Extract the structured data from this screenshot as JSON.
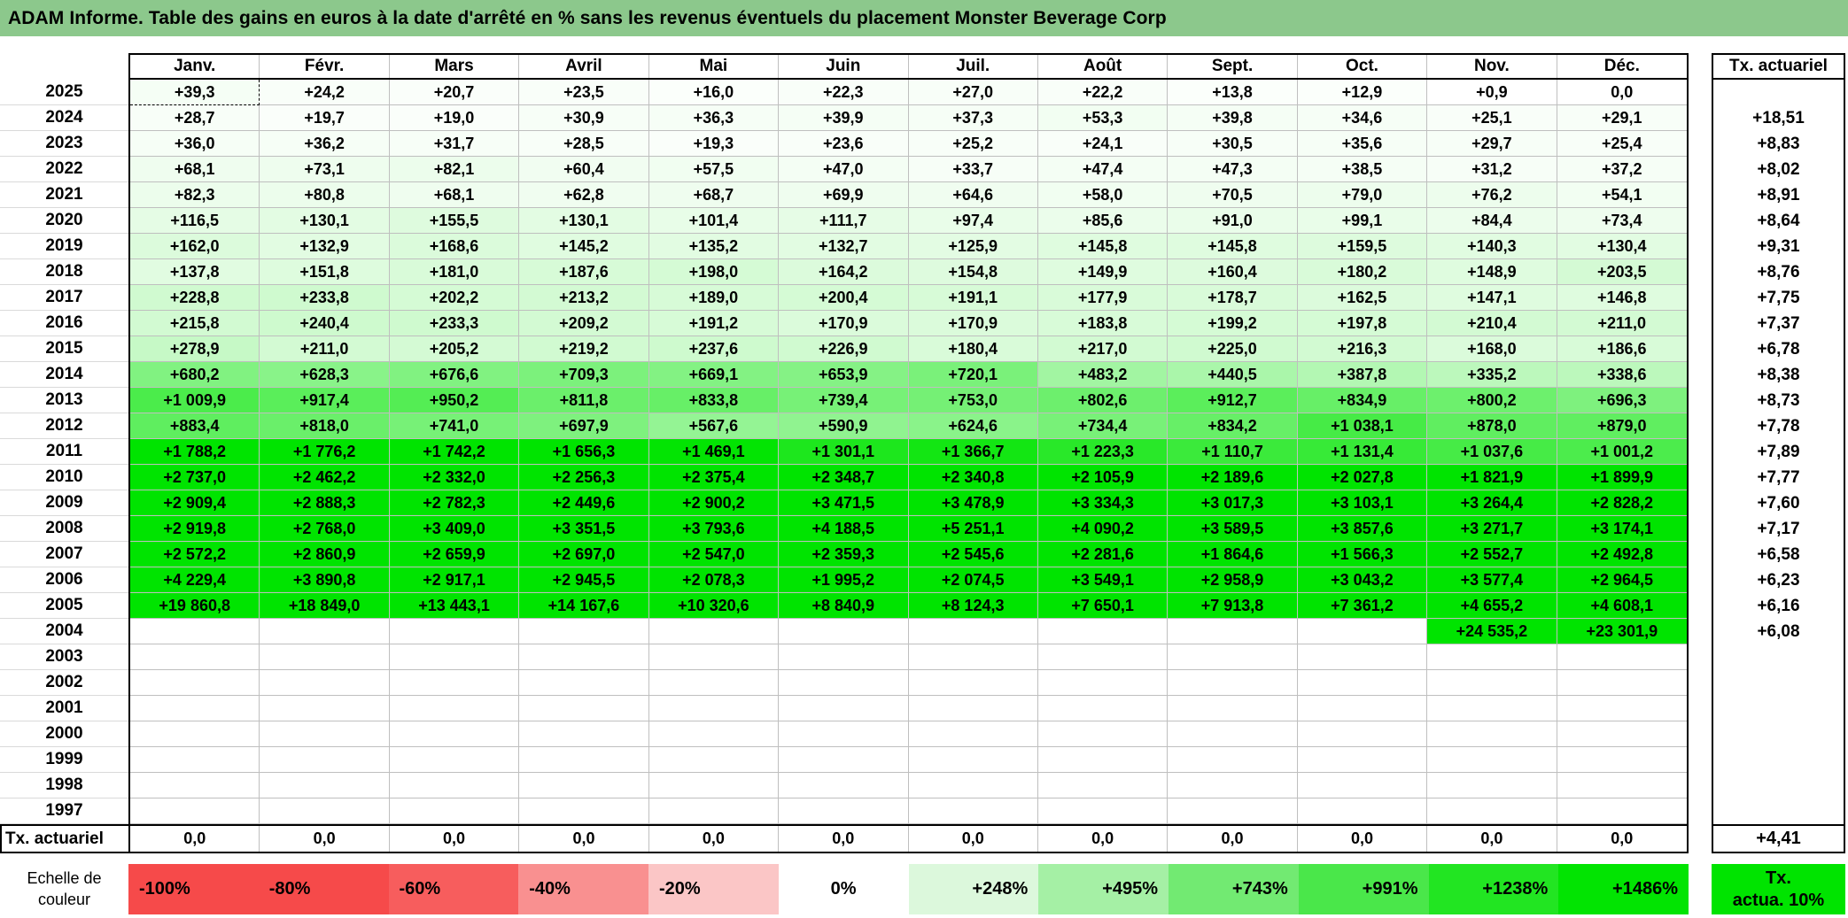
{
  "title": "ADAM Informe. Table des gains en euros à la date d'arrêté en % sans les revenus éventuels du placement Monster Beverage Corp",
  "months": [
    "Janv.",
    "Févr.",
    "Mars",
    "Avril",
    "Mai",
    "Juin",
    "Juil.",
    "Août",
    "Sept.",
    "Oct.",
    "Nov.",
    "Déc."
  ],
  "right_column": {
    "header": "Tx. actuariel"
  },
  "rows": [
    {
      "year": "2025",
      "cells": [
        "+39,3",
        "+24,2",
        "+20,7",
        "+23,5",
        "+16,0",
        "+22,3",
        "+27,0",
        "+22,2",
        "+13,8",
        "+12,9",
        "+0,9",
        "0,0"
      ],
      "tx": ""
    },
    {
      "year": "2024",
      "cells": [
        "+28,7",
        "+19,7",
        "+19,0",
        "+30,9",
        "+36,3",
        "+39,9",
        "+37,3",
        "+53,3",
        "+39,8",
        "+34,6",
        "+25,1",
        "+29,1"
      ],
      "tx": "+18,51"
    },
    {
      "year": "2023",
      "cells": [
        "+36,0",
        "+36,2",
        "+31,7",
        "+28,5",
        "+19,3",
        "+23,6",
        "+25,2",
        "+24,1",
        "+30,5",
        "+35,6",
        "+29,7",
        "+25,4"
      ],
      "tx": "+8,83"
    },
    {
      "year": "2022",
      "cells": [
        "+68,1",
        "+73,1",
        "+82,1",
        "+60,4",
        "+57,5",
        "+47,0",
        "+33,7",
        "+47,4",
        "+47,3",
        "+38,5",
        "+31,2",
        "+37,2"
      ],
      "tx": "+8,02"
    },
    {
      "year": "2021",
      "cells": [
        "+82,3",
        "+80,8",
        "+68,1",
        "+62,8",
        "+68,7",
        "+69,9",
        "+64,6",
        "+58,0",
        "+70,5",
        "+79,0",
        "+76,2",
        "+54,1"
      ],
      "tx": "+8,91"
    },
    {
      "year": "2020",
      "cells": [
        "+116,5",
        "+130,1",
        "+155,5",
        "+130,1",
        "+101,4",
        "+111,7",
        "+97,4",
        "+85,6",
        "+91,0",
        "+99,1",
        "+84,4",
        "+73,4"
      ],
      "tx": "+8,64"
    },
    {
      "year": "2019",
      "cells": [
        "+162,0",
        "+132,9",
        "+168,6",
        "+145,2",
        "+135,2",
        "+132,7",
        "+125,9",
        "+145,8",
        "+145,8",
        "+159,5",
        "+140,3",
        "+130,4"
      ],
      "tx": "+9,31"
    },
    {
      "year": "2018",
      "cells": [
        "+137,8",
        "+151,8",
        "+181,0",
        "+187,6",
        "+198,0",
        "+164,2",
        "+154,8",
        "+149,9",
        "+160,4",
        "+180,2",
        "+148,9",
        "+203,5"
      ],
      "tx": "+8,76"
    },
    {
      "year": "2017",
      "cells": [
        "+228,8",
        "+233,8",
        "+202,2",
        "+213,2",
        "+189,0",
        "+200,4",
        "+191,1",
        "+177,9",
        "+178,7",
        "+162,5",
        "+147,1",
        "+146,8"
      ],
      "tx": "+7,75"
    },
    {
      "year": "2016",
      "cells": [
        "+215,8",
        "+240,4",
        "+233,3",
        "+209,2",
        "+191,2",
        "+170,9",
        "+170,9",
        "+183,8",
        "+199,2",
        "+197,8",
        "+210,4",
        "+211,0"
      ],
      "tx": "+7,37"
    },
    {
      "year": "2015",
      "cells": [
        "+278,9",
        "+211,0",
        "+205,2",
        "+219,2",
        "+237,6",
        "+226,9",
        "+180,4",
        "+217,0",
        "+225,0",
        "+216,3",
        "+168,0",
        "+186,6"
      ],
      "tx": "+6,78"
    },
    {
      "year": "2014",
      "cells": [
        "+680,2",
        "+628,3",
        "+676,6",
        "+709,3",
        "+669,1",
        "+653,9",
        "+720,1",
        "+483,2",
        "+440,5",
        "+387,8",
        "+335,2",
        "+338,6"
      ],
      "tx": "+8,38"
    },
    {
      "year": "2013",
      "cells": [
        "+1 009,9",
        "+917,4",
        "+950,2",
        "+811,8",
        "+833,8",
        "+739,4",
        "+753,0",
        "+802,6",
        "+912,7",
        "+834,9",
        "+800,2",
        "+696,3"
      ],
      "tx": "+8,73"
    },
    {
      "year": "2012",
      "cells": [
        "+883,4",
        "+818,0",
        "+741,0",
        "+697,9",
        "+567,6",
        "+590,9",
        "+624,6",
        "+734,4",
        "+834,2",
        "+1 038,1",
        "+878,0",
        "+879,0"
      ],
      "tx": "+7,78"
    },
    {
      "year": "2011",
      "cells": [
        "+1 788,2",
        "+1 776,2",
        "+1 742,2",
        "+1 656,3",
        "+1 469,1",
        "+1 301,1",
        "+1 366,7",
        "+1 223,3",
        "+1 110,7",
        "+1 131,4",
        "+1 037,6",
        "+1 001,2"
      ],
      "tx": "+7,89"
    },
    {
      "year": "2010",
      "cells": [
        "+2 737,0",
        "+2 462,2",
        "+2 332,0",
        "+2 256,3",
        "+2 375,4",
        "+2 348,7",
        "+2 340,8",
        "+2 105,9",
        "+2 189,6",
        "+2 027,8",
        "+1 821,9",
        "+1 899,9"
      ],
      "tx": "+7,77"
    },
    {
      "year": "2009",
      "cells": [
        "+2 909,4",
        "+2 888,3",
        "+2 782,3",
        "+2 449,6",
        "+2 900,2",
        "+3 471,5",
        "+3 478,9",
        "+3 334,3",
        "+3 017,3",
        "+3 103,1",
        "+3 264,4",
        "+2 828,2"
      ],
      "tx": "+7,60"
    },
    {
      "year": "2008",
      "cells": [
        "+2 919,8",
        "+2 768,0",
        "+3 409,0",
        "+3 351,5",
        "+3 793,6",
        "+4 188,5",
        "+5 251,1",
        "+4 090,2",
        "+3 589,5",
        "+3 857,6",
        "+3 271,7",
        "+3 174,1"
      ],
      "tx": "+7,17"
    },
    {
      "year": "2007",
      "cells": [
        "+2 572,2",
        "+2 860,9",
        "+2 659,9",
        "+2 697,0",
        "+2 547,0",
        "+2 359,3",
        "+2 545,6",
        "+2 281,6",
        "+1 864,6",
        "+1 566,3",
        "+2 552,7",
        "+2 492,8"
      ],
      "tx": "+6,58"
    },
    {
      "year": "2006",
      "cells": [
        "+4 229,4",
        "+3 890,8",
        "+2 917,1",
        "+2 945,5",
        "+2 078,3",
        "+1 995,2",
        "+2 074,5",
        "+3 549,1",
        "+2 958,9",
        "+3 043,2",
        "+3 577,4",
        "+2 964,5"
      ],
      "tx": "+6,23"
    },
    {
      "year": "2005",
      "cells": [
        "+19 860,8",
        "+18 849,0",
        "+13 443,1",
        "+14 167,6",
        "+10 320,6",
        "+8 840,9",
        "+8 124,3",
        "+7 650,1",
        "+7 913,8",
        "+7 361,2",
        "+4 655,2",
        "+4 608,1"
      ],
      "tx": "+6,16"
    },
    {
      "year": "2004",
      "cells": [
        "",
        "",
        "",
        "",
        "",
        "",
        "",
        "",
        "",
        "",
        "+24 535,2",
        "+23 301,9"
      ],
      "tx": "+6,08"
    },
    {
      "year": "2003",
      "cells": [
        "",
        "",
        "",
        "",
        "",
        "",
        "",
        "",
        "",
        "",
        "",
        ""
      ],
      "tx": ""
    },
    {
      "year": "2002",
      "cells": [
        "",
        "",
        "",
        "",
        "",
        "",
        "",
        "",
        "",
        "",
        "",
        ""
      ],
      "tx": ""
    },
    {
      "year": "2001",
      "cells": [
        "",
        "",
        "",
        "",
        "",
        "",
        "",
        "",
        "",
        "",
        "",
        ""
      ],
      "tx": ""
    },
    {
      "year": "2000",
      "cells": [
        "",
        "",
        "",
        "",
        "",
        "",
        "",
        "",
        "",
        "",
        "",
        ""
      ],
      "tx": ""
    },
    {
      "year": "1999",
      "cells": [
        "",
        "",
        "",
        "",
        "",
        "",
        "",
        "",
        "",
        "",
        "",
        ""
      ],
      "tx": ""
    },
    {
      "year": "1998",
      "cells": [
        "",
        "",
        "",
        "",
        "",
        "",
        "",
        "",
        "",
        "",
        "",
        ""
      ],
      "tx": ""
    },
    {
      "year": "1997",
      "cells": [
        "",
        "",
        "",
        "",
        "",
        "",
        "",
        "",
        "",
        "",
        "",
        ""
      ],
      "tx": ""
    }
  ],
  "footer": {
    "label": "Tx. actuariel",
    "values": [
      "0,0",
      "0,0",
      "0,0",
      "0,0",
      "0,0",
      "0,0",
      "0,0",
      "0,0",
      "0,0",
      "0,0",
      "0,0",
      "0,0"
    ],
    "tx": "+4,41"
  },
  "legend": {
    "label_line1": "Echelle de",
    "label_line2": "couleur",
    "items": [
      {
        "label": "-100%",
        "color": "#F64A4A",
        "align": "left"
      },
      {
        "label": "-80%",
        "color": "#F64A4A",
        "align": "left"
      },
      {
        "label": "-60%",
        "color": "#F75D5D",
        "align": "left"
      },
      {
        "label": "-40%",
        "color": "#F99090",
        "align": "left"
      },
      {
        "label": "-20%",
        "color": "#FBC6C6",
        "align": "left"
      },
      {
        "label": "0%",
        "color": "#FFFFFF",
        "align": "center"
      },
      {
        "label": "+248%",
        "color": "#DCF8DC",
        "align": "right"
      },
      {
        "label": "+495%",
        "color": "#A5F0A5",
        "align": "right"
      },
      {
        "label": "+743%",
        "color": "#72EA72",
        "align": "right"
      },
      {
        "label": "+991%",
        "color": "#4AE74A",
        "align": "right"
      },
      {
        "label": "+1238%",
        "color": "#22E522",
        "align": "right"
      },
      {
        "label": "+1486%",
        "color": "#02E402",
        "align": "right"
      }
    ],
    "tx_line1": "Tx.",
    "tx_line2": "actua. 10%",
    "tx_color": "#00E400"
  },
  "colors": {
    "title_bg": "#8CC88C",
    "heat_full_green": "#00E400",
    "scale_max_percent": 1486
  }
}
